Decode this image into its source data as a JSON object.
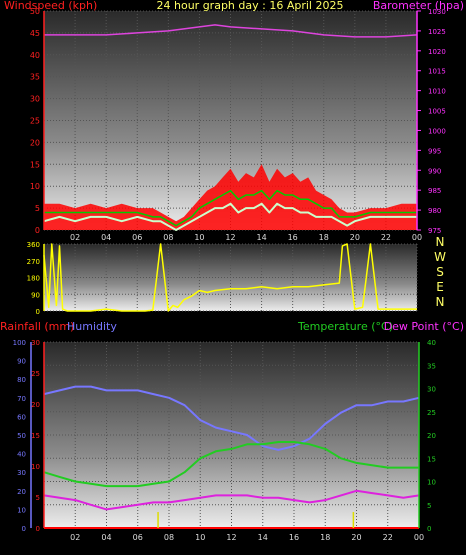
{
  "colors": {
    "background": "#000000",
    "wind_label": "#ff2020",
    "baro_label": "#ff33ff",
    "title": "#ffff66",
    "wind_gust": "#ff0000",
    "wind_avg": "#00cc00",
    "wind_speed": "#ccffcc",
    "baro_line": "#dd44dd",
    "dir_line": "#ffff00",
    "rain": "#ff0000",
    "humidity": "#7777ff",
    "temperature": "#22cc22",
    "dewpoint": "#dd22dd",
    "rain_marks": "#dddd00"
  },
  "chart_data": [
    {
      "id": "wind",
      "type": "line",
      "title": "24 hour graph day : 16 April 2025",
      "ylabel": "Windspeed (kph)",
      "y2label": "Barometer (hpa)",
      "x_ticks": [
        "02",
        "04",
        "06",
        "08",
        "10",
        "12",
        "14",
        "16",
        "18",
        "20",
        "22",
        "00"
      ],
      "x_range": [
        0,
        24
      ],
      "ylim": [
        0,
        50
      ],
      "y_ticks": [
        "0",
        "5",
        "10",
        "15",
        "20",
        "25",
        "30",
        "35",
        "40",
        "45",
        "50"
      ],
      "y2lim": [
        975,
        1030
      ],
      "y2_ticks": [
        "975",
        "980",
        "985",
        "990",
        "995",
        "1000",
        "1005",
        "1010",
        "1015",
        "1020",
        "1025",
        "1030"
      ],
      "series": [
        {
          "key": "gust",
          "x": [
            0,
            1,
            2,
            3,
            4,
            5,
            6,
            7,
            7.5,
            8,
            8.5,
            9,
            9.5,
            10,
            10.5,
            11,
            11.5,
            12,
            12.5,
            13,
            13.5,
            14,
            14.5,
            15,
            15.5,
            16,
            16.5,
            17,
            17.5,
            18,
            18.5,
            19,
            19.5,
            20,
            21,
            22,
            23,
            24
          ],
          "y": [
            6,
            6,
            5,
            6,
            5,
            6,
            5,
            5,
            4,
            3,
            2,
            3,
            5,
            7,
            9,
            10,
            12,
            14,
            11,
            13,
            12,
            15,
            11,
            14,
            12,
            13,
            11,
            12,
            9,
            8,
            7,
            5,
            4,
            4,
            5,
            5,
            6,
            6
          ]
        },
        {
          "key": "avg",
          "x": [
            0,
            1,
            2,
            3,
            4,
            5,
            6,
            7,
            7.5,
            8,
            8.5,
            9,
            9.5,
            10,
            10.5,
            11,
            11.5,
            12,
            12.5,
            13,
            13.5,
            14,
            14.5,
            15,
            15.5,
            16,
            16.5,
            17,
            17.5,
            18,
            18.5,
            19,
            19.5,
            20,
            21,
            22,
            23,
            24
          ],
          "y": [
            4,
            4,
            4,
            4,
            4,
            4,
            4,
            3,
            3,
            2,
            1,
            2,
            3,
            5,
            6,
            7,
            8,
            9,
            7,
            8,
            8,
            9,
            7,
            9,
            8,
            8,
            7,
            7,
            6,
            5,
            5,
            3,
            3,
            3,
            4,
            4,
            4,
            4
          ]
        },
        {
          "key": "speed",
          "x": [
            0,
            1,
            2,
            3,
            4,
            5,
            6,
            7,
            7.5,
            8,
            8.5,
            9,
            9.5,
            10,
            10.5,
            11,
            11.5,
            12,
            12.5,
            13,
            13.5,
            14,
            14.5,
            15,
            15.5,
            16,
            16.5,
            17,
            17.5,
            18,
            18.5,
            19,
            19.5,
            20,
            21,
            22,
            23,
            24
          ],
          "y": [
            2,
            3,
            2,
            3,
            3,
            2,
            3,
            2,
            2,
            1,
            0,
            1,
            2,
            3,
            4,
            5,
            5,
            6,
            4,
            5,
            5,
            6,
            4,
            6,
            5,
            5,
            4,
            4,
            3,
            3,
            3,
            2,
            1,
            2,
            3,
            3,
            3,
            3
          ]
        },
        {
          "key": "baro",
          "x": [
            0,
            2,
            4,
            6,
            8,
            10,
            11,
            12,
            14,
            16,
            18,
            20,
            22,
            24
          ],
          "y": [
            1024,
            1024,
            1024,
            1024.5,
            1025,
            1026,
            1026.5,
            1026,
            1025.5,
            1025,
            1024,
            1023.5,
            1023.5,
            1024
          ]
        }
      ]
    },
    {
      "id": "direction",
      "type": "line",
      "ylim": [
        0,
        360
      ],
      "y_ticks": [
        "0",
        "90",
        "180",
        "270",
        "360"
      ],
      "compass": [
        "N",
        "W",
        "S",
        "E",
        "N"
      ],
      "x_range": [
        0,
        24
      ],
      "series": [
        {
          "key": "dir",
          "x": [
            0,
            0.3,
            0.5,
            0.8,
            1,
            1.2,
            1.5,
            2,
            3,
            4,
            5,
            6,
            6.5,
            7,
            7.5,
            8,
            8.3,
            8.6,
            9,
            9.5,
            10,
            10.5,
            11,
            12,
            13,
            14,
            15,
            16,
            17,
            18,
            19,
            19.2,
            19.5,
            20,
            20.5,
            21,
            21.5,
            22,
            23,
            24
          ],
          "y": [
            300,
            20,
            360,
            30,
            350,
            10,
            0,
            0,
            0,
            10,
            0,
            0,
            0,
            5,
            360,
            0,
            30,
            20,
            60,
            80,
            110,
            100,
            110,
            120,
            120,
            130,
            120,
            130,
            130,
            140,
            150,
            350,
            360,
            10,
            20,
            360,
            10,
            10,
            10,
            10
          ]
        }
      ]
    },
    {
      "id": "temp",
      "type": "line",
      "left_label_rain": "Rainfall (mm)",
      "left_label_hum": "Humidity",
      "right_label_temp": "Temperature (°C)",
      "right_label_dew": "Dew Point (°C)",
      "x_ticks": [
        "02",
        "04",
        "06",
        "08",
        "10",
        "12",
        "14",
        "16",
        "18",
        "20",
        "22",
        "00"
      ],
      "x_range": [
        0,
        24
      ],
      "hum_lim": [
        0,
        100
      ],
      "hum_ticks": [
        "0",
        "10",
        "20",
        "30",
        "40",
        "50",
        "60",
        "70",
        "80",
        "90",
        "100"
      ],
      "rain_lim": [
        0,
        30
      ],
      "rain_ticks": [
        "0",
        "5",
        "10",
        "15",
        "20",
        "25",
        "30"
      ],
      "temp_lim": [
        0,
        40
      ],
      "temp_ticks": [
        "0",
        "5",
        "10",
        "15",
        "20",
        "25",
        "30",
        "35",
        "40"
      ],
      "series": [
        {
          "key": "humidity",
          "x": [
            0,
            1,
            2,
            3,
            4,
            5,
            6,
            7,
            8,
            9,
            10,
            11,
            12,
            13,
            14,
            15,
            16,
            17,
            18,
            19,
            20,
            21,
            22,
            23,
            24
          ],
          "y": [
            72,
            74,
            76,
            76,
            74,
            74,
            74,
            72,
            70,
            66,
            58,
            54,
            52,
            50,
            44,
            42,
            44,
            48,
            56,
            62,
            66,
            66,
            68,
            68,
            70
          ]
        },
        {
          "key": "temperature",
          "x": [
            0,
            1,
            2,
            3,
            4,
            5,
            6,
            7,
            8,
            9,
            10,
            11,
            12,
            13,
            14,
            15,
            16,
            17,
            18,
            19,
            20,
            21,
            22,
            23,
            24
          ],
          "y": [
            12,
            11,
            10,
            9.5,
            9,
            9,
            9,
            9.5,
            10,
            12,
            15,
            16.5,
            17,
            18,
            18,
            18.5,
            18.5,
            18,
            17,
            15,
            14,
            13.5,
            13,
            13,
            13
          ]
        },
        {
          "key": "dewpoint",
          "x": [
            0,
            1,
            2,
            3,
            4,
            5,
            6,
            7,
            8,
            9,
            10,
            11,
            12,
            13,
            14,
            15,
            16,
            17,
            18,
            19,
            20,
            21,
            22,
            23,
            24
          ],
          "y": [
            7,
            6.5,
            6,
            5,
            4,
            4.5,
            5,
            5.5,
            5.5,
            6,
            6.5,
            7,
            7,
            7,
            6.5,
            6.5,
            6,
            5.5,
            6,
            7,
            8,
            7.5,
            7,
            6.5,
            7
          ]
        },
        {
          "key": "rain",
          "x": [
            0,
            24
          ],
          "y": [
            0,
            0
          ]
        }
      ],
      "rain_marks_x": [
        7.3,
        19.8
      ]
    }
  ]
}
